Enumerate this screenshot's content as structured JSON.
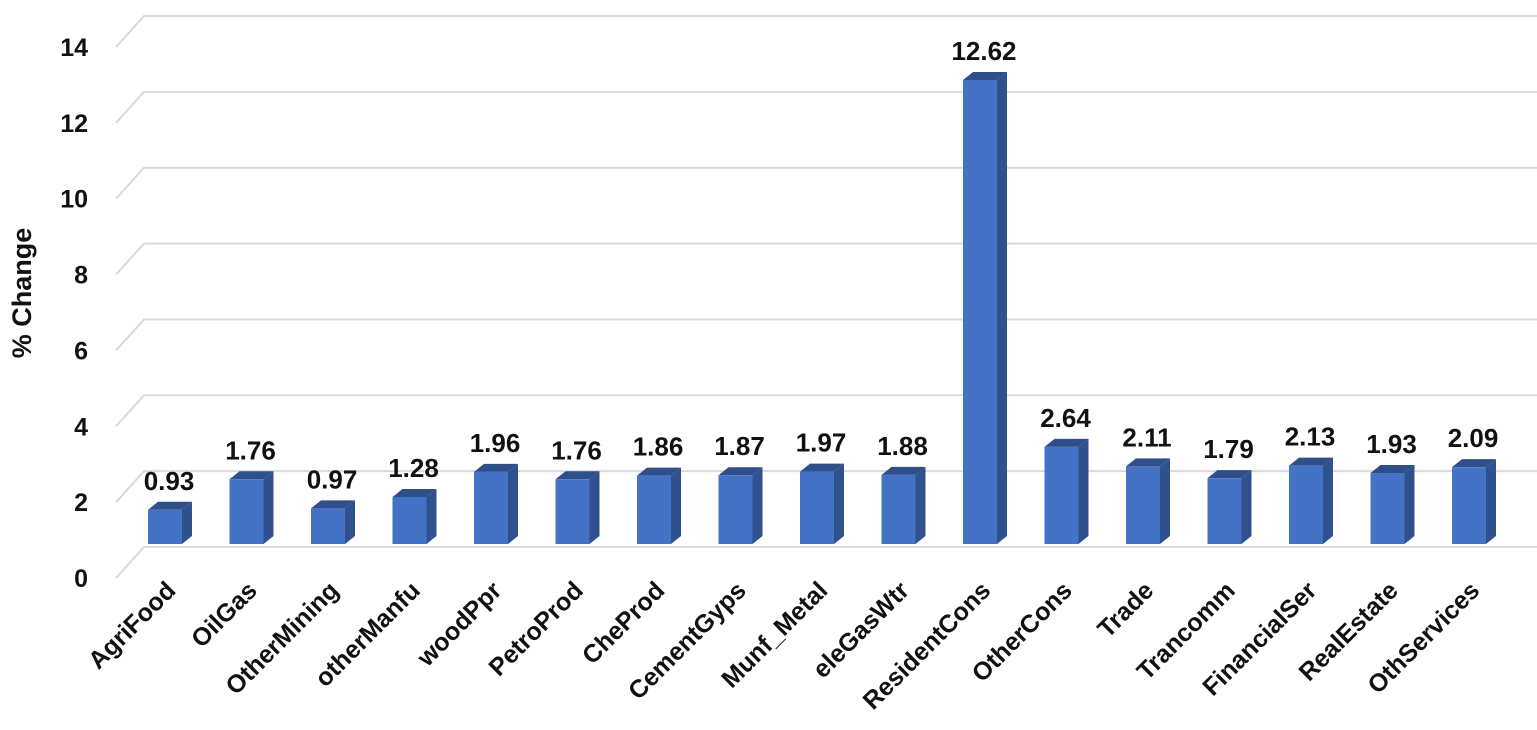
{
  "chart_data": {
    "type": "bar",
    "title": "",
    "xlabel": "",
    "ylabel": "% Change",
    "ylim": [
      0,
      14
    ],
    "yticks": [
      0,
      2,
      4,
      6,
      8,
      10,
      12,
      14
    ],
    "grid": true,
    "legend": "none",
    "style": "3d-column",
    "categories": [
      "AgriFood",
      "OilGas",
      "OtherMining",
      "otherManfu",
      "woodPpr",
      "PetroProd",
      "CheProd",
      "CementGyps",
      "Munf_Metal",
      "eleGasWtr",
      "ResidentCons",
      "OtherCons",
      "Trade",
      "Trancomm",
      "FinancialSer",
      "RealEstate",
      "OthServices"
    ],
    "values": [
      0.93,
      1.76,
      0.97,
      1.28,
      1.96,
      1.76,
      1.86,
      1.87,
      1.97,
      1.88,
      12.62,
      2.64,
      2.11,
      1.79,
      2.13,
      1.93,
      2.09
    ],
    "data_labels": [
      "0.93",
      "1.76",
      "0.97",
      "1.28",
      "1.96",
      "1.76",
      "1.86",
      "1.87",
      "1.97",
      "1.88",
      "12.62",
      "2.64",
      "2.11",
      "1.79",
      "2.13",
      "1.93",
      "2.09"
    ],
    "colors": {
      "bar_front": "#4472c4",
      "bar_side": "#2f528f",
      "bar_top": "#2e4f8a",
      "grid": "#d9d9d9"
    }
  }
}
